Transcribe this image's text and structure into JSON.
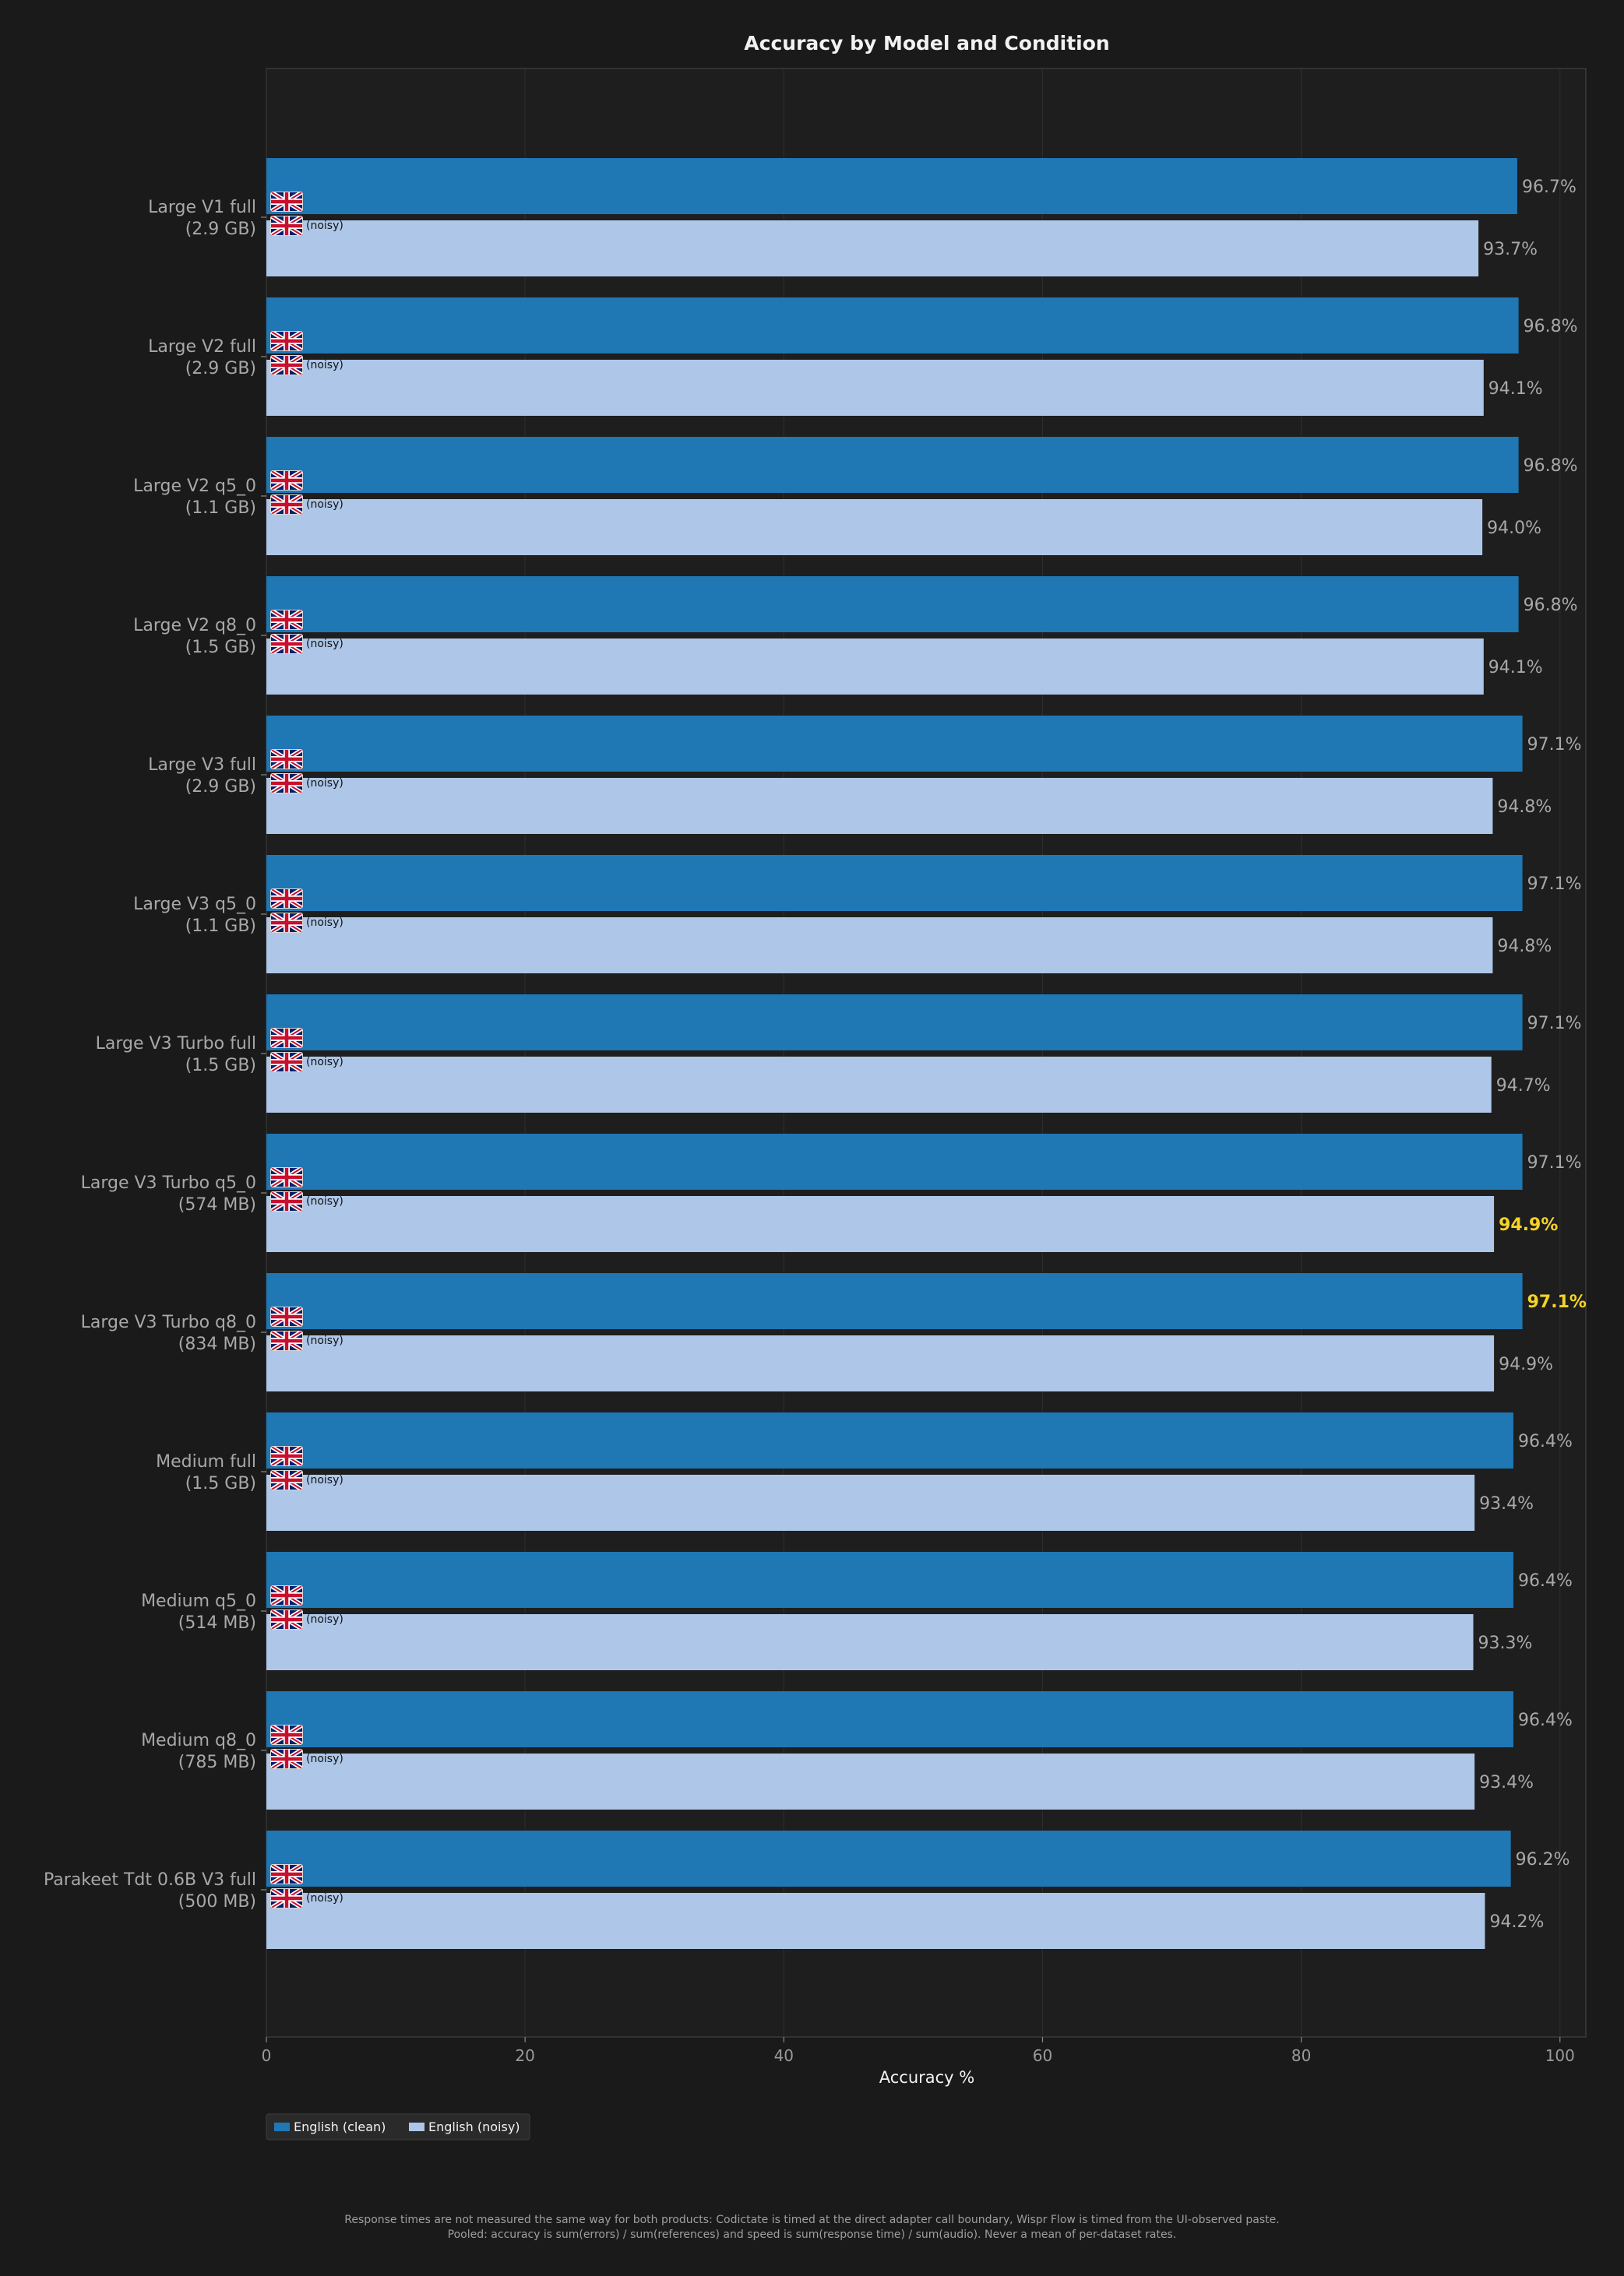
{
  "chart_data": {
    "type": "bar",
    "orientation": "horizontal",
    "title": "Accuracy by Model and Condition",
    "xlabel": "Accuracy %",
    "ylabel": "",
    "xlim": [
      0,
      102
    ],
    "xticks": [
      0,
      20,
      40,
      60,
      80,
      100
    ],
    "grid": true,
    "legend_position": "bottom-left",
    "categories": [
      [
        "Large V1 full",
        "(2.9 GB)"
      ],
      [
        "Large V2 full",
        "(2.9 GB)"
      ],
      [
        "Large V2 q5_0",
        "(1.1 GB)"
      ],
      [
        "Large V2 q8_0",
        "(1.5 GB)"
      ],
      [
        "Large V3 full",
        "(2.9 GB)"
      ],
      [
        "Large V3 q5_0",
        "(1.1 GB)"
      ],
      [
        "Large V3 Turbo full",
        "(1.5 GB)"
      ],
      [
        "Large V3 Turbo q5_0",
        "(574 MB)"
      ],
      [
        "Large V3 Turbo q8_0",
        "(834 MB)"
      ],
      [
        "Medium full",
        "(1.5 GB)"
      ],
      [
        "Medium q5_0",
        "(514 MB)"
      ],
      [
        "Medium q8_0",
        "(785 MB)"
      ],
      [
        "Parakeet Tdt 0.6B V3 full",
        "(500 MB)"
      ]
    ],
    "series": [
      {
        "name": "English (clean)",
        "color": "#1f77b4",
        "values": [
          96.7,
          96.8,
          96.8,
          96.8,
          97.1,
          97.1,
          97.1,
          97.1,
          97.1,
          96.4,
          96.4,
          96.4,
          96.2
        ],
        "labels": [
          "96.7%",
          "96.8%",
          "96.8%",
          "96.8%",
          "97.1%",
          "97.1%",
          "97.1%",
          "97.1%",
          "97.1%",
          "96.4%",
          "96.4%",
          "96.4%",
          "96.2%"
        ],
        "highlight_index": 8,
        "bar_tag": ""
      },
      {
        "name": "English (noisy)",
        "color": "#aec7e8",
        "values": [
          93.7,
          94.1,
          94.0,
          94.1,
          94.8,
          94.8,
          94.7,
          94.9,
          94.9,
          93.4,
          93.3,
          93.4,
          94.2
        ],
        "labels": [
          "93.7%",
          "94.1%",
          "94.0%",
          "94.1%",
          "94.8%",
          "94.8%",
          "94.7%",
          "94.9%",
          "94.9%",
          "93.4%",
          "93.3%",
          "93.4%",
          "94.2%"
        ],
        "highlight_index": 7,
        "bar_tag": "(noisy)"
      }
    ],
    "highlight_color": "#f5d327",
    "bar_icon": "uk-flag-icon"
  },
  "footer": {
    "line1": "Response times are not measured the same way for both products: Codictate is timed at the direct adapter call boundary, Wispr Flow is timed from the UI-observed paste.",
    "line2": "Pooled: accuracy is sum(errors) / sum(references) and speed is sum(response time) / sum(audio). Never a mean of per-dataset rates."
  }
}
